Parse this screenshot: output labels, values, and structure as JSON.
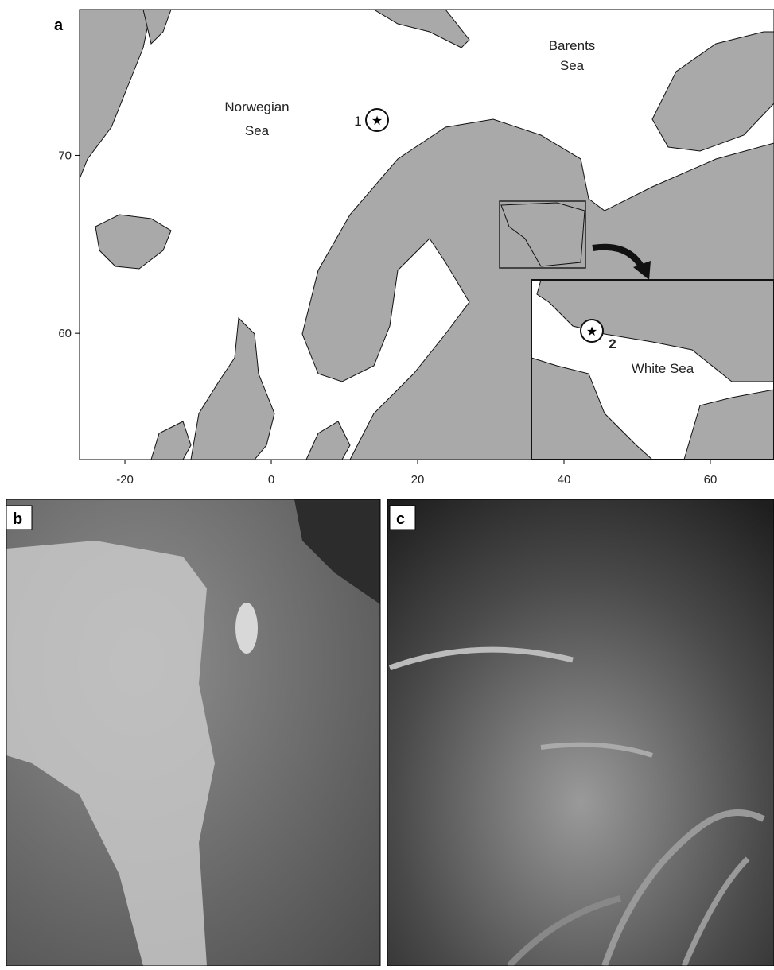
{
  "figure": {
    "panels": {
      "a": "a",
      "b": "b",
      "c": "c"
    },
    "map": {
      "xlim": [
        -26.2,
        68.7
      ],
      "ylim": [
        52.9,
        78.2
      ],
      "xticks": [
        -20,
        0,
        20,
        40,
        60
      ],
      "yticks": [
        60,
        70
      ],
      "labels": {
        "norwegian_sea": [
          "Norwegian",
          "Sea"
        ],
        "barents_sea": [
          "Barents",
          "Sea"
        ],
        "white_sea": "White Sea"
      },
      "sites": [
        "1",
        "2"
      ]
    }
  }
}
